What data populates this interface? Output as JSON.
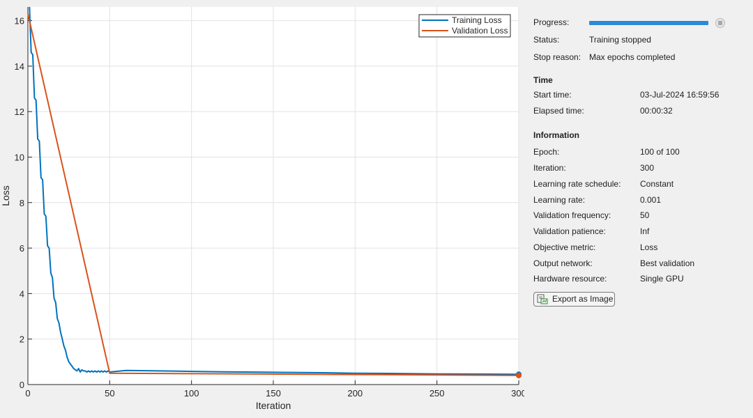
{
  "chart_data": {
    "type": "line",
    "xlabel": "Iteration",
    "ylabel": "Loss",
    "xlim": [
      0,
      300
    ],
    "ylim": [
      0,
      16.6
    ],
    "xticks": [
      0,
      50,
      100,
      150,
      200,
      250,
      300
    ],
    "yticks": [
      0,
      2,
      4,
      6,
      8,
      10,
      12,
      14,
      16
    ],
    "grid": true,
    "legend_position": "top-right",
    "series": [
      {
        "name": "Training Loss",
        "color": "#0072bd",
        "x": [
          1,
          2,
          3,
          4,
          5,
          6,
          7,
          8,
          9,
          10,
          11,
          12,
          13,
          14,
          15,
          16,
          17,
          18,
          19,
          20,
          21,
          22,
          23,
          24,
          25,
          26,
          27,
          28,
          29,
          30,
          31,
          32,
          33,
          34,
          35,
          36,
          37,
          38,
          39,
          40,
          41,
          42,
          43,
          44,
          45,
          46,
          47,
          48,
          49,
          50,
          60,
          80,
          100,
          120,
          150,
          180,
          200,
          220,
          250,
          280,
          300
        ],
        "y": [
          16.6,
          14.6,
          14.5,
          12.6,
          12.5,
          10.8,
          10.7,
          9.1,
          9.0,
          7.5,
          7.4,
          6.1,
          6.0,
          4.9,
          4.7,
          3.8,
          3.6,
          2.9,
          2.7,
          2.3,
          2.0,
          1.7,
          1.5,
          1.2,
          1.0,
          0.9,
          0.8,
          0.7,
          0.65,
          0.6,
          0.7,
          0.55,
          0.65,
          0.6,
          0.6,
          0.55,
          0.6,
          0.55,
          0.6,
          0.55,
          0.6,
          0.55,
          0.6,
          0.55,
          0.6,
          0.55,
          0.6,
          0.55,
          0.6,
          0.55,
          0.62,
          0.6,
          0.58,
          0.56,
          0.54,
          0.52,
          0.5,
          0.49,
          0.47,
          0.46,
          0.45
        ]
      },
      {
        "name": "Validation Loss",
        "color": "#d95319",
        "x": [
          0,
          50,
          300
        ],
        "y": [
          16.3,
          0.5,
          0.4
        ]
      }
    ]
  },
  "panel": {
    "progress_label": "Progress:",
    "progress": 1.0,
    "status_label": "Status:",
    "status_value": "Training stopped",
    "stop_reason_label": "Stop reason:",
    "stop_reason_value": "Max epochs completed",
    "time_title": "Time",
    "start_time_label": "Start time:",
    "start_time_value": "03-Jul-2024 16:59:56",
    "elapsed_label": "Elapsed time:",
    "elapsed_value": "00:00:32",
    "info_title": "Information",
    "info": [
      {
        "label": "Epoch:",
        "value": "100 of 100"
      },
      {
        "label": "Iteration:",
        "value": "300"
      },
      {
        "label": "Learning rate schedule:",
        "value": "Constant"
      },
      {
        "label": "Learning rate:",
        "value": "0.001"
      },
      {
        "label": "Validation frequency:",
        "value": "50"
      },
      {
        "label": "Validation patience:",
        "value": "Inf"
      },
      {
        "label": "Objective metric:",
        "value": "Loss"
      },
      {
        "label": "Output network:",
        "value": "Best validation"
      },
      {
        "label": "Hardware resource:",
        "value": "Single GPU"
      }
    ],
    "export_label": "Export as Image",
    "export_icon": "export-image-icon",
    "stop_icon": "stop-icon"
  }
}
